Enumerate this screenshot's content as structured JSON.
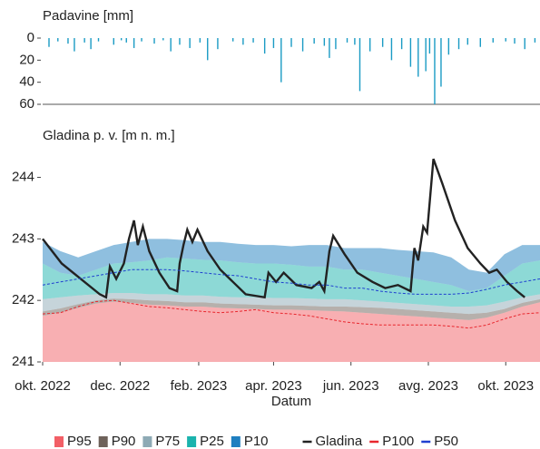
{
  "chart_data": [
    {
      "type": "bar",
      "y_label": "Padavine [mm]",
      "color": "#1a9bc4",
      "inverted": true,
      "xlim": [
        0,
        392
      ],
      "ylim": [
        0,
        60
      ],
      "yticks": [
        0,
        20,
        40,
        60
      ],
      "x": [
        5,
        12,
        20,
        25,
        33,
        38,
        44,
        56,
        62,
        66,
        72,
        78,
        88,
        95,
        101,
        108,
        116,
        124,
        130,
        138,
        150,
        158,
        166,
        175,
        182,
        188,
        196,
        205,
        214,
        222,
        226,
        231,
        240,
        246,
        250,
        258,
        268,
        275,
        283,
        290,
        296,
        302,
        305,
        309,
        314,
        320,
        328,
        335,
        345,
        355,
        365,
        372,
        380,
        388
      ],
      "values": [
        8,
        3,
        5,
        12,
        4,
        10,
        3,
        6,
        2,
        4,
        9,
        3,
        5,
        2,
        12,
        6,
        9,
        4,
        20,
        10,
        3,
        6,
        4,
        14,
        9,
        40,
        8,
        12,
        5,
        7,
        18,
        10,
        4,
        6,
        48,
        12,
        8,
        20,
        10,
        26,
        35,
        30,
        14,
        60,
        44,
        15,
        10,
        6,
        8,
        4,
        3,
        5,
        10,
        4
      ]
    },
    {
      "type": "area",
      "y_label": "Gladina p. v. [m n. m.]",
      "x_label": "Datum",
      "xlim": [
        0,
        392
      ],
      "ylim": [
        241,
        244.45
      ],
      "yticks": [
        241,
        242,
        243,
        244
      ],
      "xticks": [
        {
          "value": 0,
          "label": "okt. 2022"
        },
        {
          "value": 61,
          "label": "dec. 2022"
        },
        {
          "value": 123,
          "label": "feb. 2023"
        },
        {
          "value": 182,
          "label": "apr. 2023"
        },
        {
          "value": 243,
          "label": "jun. 2023"
        },
        {
          "value": 304,
          "label": "avg. 2023"
        },
        {
          "value": 365,
          "label": "okt. 2023"
        }
      ],
      "x": [
        0,
        14,
        28,
        42,
        56,
        70,
        84,
        98,
        112,
        126,
        140,
        154,
        168,
        182,
        196,
        210,
        224,
        238,
        252,
        266,
        280,
        294,
        308,
        322,
        336,
        350,
        364,
        378,
        392
      ],
      "series": [
        {
          "name": "P95",
          "type": "area",
          "color": "#f25f66",
          "values": [
            241.75,
            241.8,
            241.88,
            241.95,
            241.98,
            241.96,
            241.93,
            241.92,
            241.9,
            241.9,
            241.88,
            241.87,
            241.86,
            241.85,
            241.85,
            241.84,
            241.83,
            241.82,
            241.8,
            241.78,
            241.76,
            241.74,
            241.72,
            241.7,
            241.68,
            241.72,
            241.8,
            241.9,
            241.97
          ]
        },
        {
          "name": "P90",
          "type": "area",
          "color": "#6e625a",
          "values": [
            241.82,
            241.87,
            241.94,
            242.0,
            242.03,
            242.02,
            242.0,
            241.99,
            241.97,
            241.97,
            241.95,
            241.94,
            241.93,
            241.92,
            241.92,
            241.91,
            241.9,
            241.9,
            241.89,
            241.88,
            241.86,
            241.84,
            241.82,
            241.8,
            241.78,
            241.8,
            241.86,
            241.96,
            242.02
          ]
        },
        {
          "name": "P75",
          "type": "area",
          "color": "#8eaab5",
          "values": [
            242.02,
            242.05,
            242.08,
            242.1,
            242.12,
            242.12,
            242.1,
            242.1,
            242.08,
            242.08,
            242.06,
            242.05,
            242.05,
            242.04,
            242.04,
            242.03,
            242.02,
            242.02,
            242.0,
            241.98,
            241.96,
            241.94,
            241.92,
            241.9,
            241.9,
            241.92,
            241.98,
            242.05,
            242.1
          ]
        },
        {
          "name": "P25",
          "type": "area",
          "color": "#1bb3ad",
          "values": [
            242.6,
            242.45,
            242.4,
            242.5,
            242.6,
            242.62,
            242.65,
            242.7,
            242.68,
            242.66,
            242.65,
            242.62,
            242.6,
            242.6,
            242.58,
            242.55,
            242.55,
            242.5,
            242.5,
            242.45,
            242.4,
            242.35,
            242.3,
            242.25,
            242.15,
            242.2,
            242.4,
            242.6,
            242.65
          ]
        },
        {
          "name": "P10",
          "type": "area",
          "color": "#1f7fc0",
          "values": [
            242.95,
            242.8,
            242.7,
            242.8,
            242.9,
            242.95,
            243.0,
            243.0,
            242.98,
            242.95,
            242.95,
            242.92,
            242.9,
            242.9,
            242.88,
            242.9,
            242.9,
            242.85,
            242.85,
            242.85,
            242.82,
            242.8,
            242.78,
            242.7,
            242.5,
            242.45,
            242.75,
            242.9,
            242.9
          ]
        },
        {
          "name": "Gladina",
          "type": "line",
          "color": "#222222",
          "x": [
            0,
            15,
            30,
            45,
            50,
            53,
            58,
            64,
            68,
            72,
            75,
            79,
            84,
            92,
            100,
            106,
            108,
            111,
            114,
            118,
            122,
            130,
            140,
            150,
            160,
            175,
            178,
            184,
            190,
            200,
            212,
            218,
            222,
            226,
            229,
            238,
            248,
            260,
            270,
            280,
            290,
            293,
            296,
            300,
            303,
            308,
            315,
            325,
            335,
            345,
            352,
            358,
            366,
            374,
            380
          ],
          "values": [
            243.0,
            242.6,
            242.35,
            242.1,
            242.05,
            242.55,
            242.35,
            242.6,
            243.0,
            243.3,
            242.9,
            243.2,
            242.8,
            242.45,
            242.2,
            242.15,
            242.6,
            242.9,
            243.15,
            242.95,
            243.15,
            242.8,
            242.5,
            242.3,
            242.1,
            242.05,
            242.45,
            242.3,
            242.45,
            242.25,
            242.2,
            242.3,
            242.15,
            242.8,
            243.05,
            242.75,
            242.45,
            242.3,
            242.2,
            242.25,
            242.15,
            242.85,
            242.65,
            243.2,
            243.1,
            244.3,
            243.9,
            243.3,
            242.85,
            242.6,
            242.45,
            242.5,
            242.3,
            242.15,
            242.05
          ]
        },
        {
          "name": "P100",
          "type": "line",
          "dashed": true,
          "color": "#e8262d",
          "values": [
            241.78,
            241.8,
            241.9,
            241.98,
            242.0,
            241.95,
            241.9,
            241.88,
            241.85,
            241.82,
            241.8,
            241.82,
            241.85,
            241.8,
            241.78,
            241.75,
            241.7,
            241.65,
            241.62,
            241.6,
            241.6,
            241.6,
            241.6,
            241.58,
            241.55,
            241.6,
            241.7,
            241.78,
            241.8
          ]
        },
        {
          "name": "P50",
          "type": "line",
          "dashed": true,
          "color": "#1f3fd0",
          "values": [
            242.25,
            242.3,
            242.35,
            242.4,
            242.45,
            242.5,
            242.5,
            242.5,
            242.48,
            242.45,
            242.42,
            242.4,
            242.35,
            242.3,
            242.28,
            242.25,
            242.25,
            242.2,
            242.2,
            242.15,
            242.12,
            242.1,
            242.1,
            242.1,
            242.12,
            242.18,
            242.25,
            242.3,
            242.35
          ]
        }
      ]
    }
  ]
}
